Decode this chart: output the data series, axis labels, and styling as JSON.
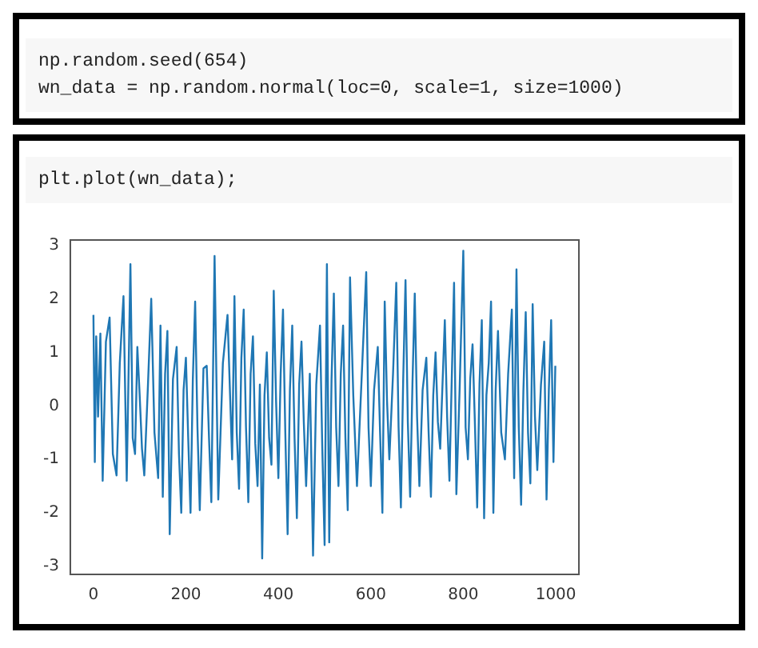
{
  "chart_data": {
    "type": "line",
    "annotations": [
      "np.random.seed(654)",
      "wn_data = np.random.normal(loc=0, scale=1, size=1000)",
      "plt.plot(wn_data);"
    ],
    "x": [
      0,
      3,
      6,
      10,
      15,
      20,
      27,
      35,
      42,
      50,
      57,
      65,
      72,
      80,
      85,
      90,
      95,
      100,
      105,
      110,
      118,
      125,
      132,
      140,
      145,
      150,
      155,
      160,
      165,
      172,
      180,
      185,
      190,
      195,
      200,
      205,
      210,
      215,
      220,
      225,
      230,
      238,
      245,
      250,
      255,
      262,
      270,
      280,
      290,
      300,
      305,
      310,
      315,
      320,
      325,
      330,
      335,
      340,
      345,
      350,
      355,
      360,
      365,
      370,
      375,
      380,
      385,
      390,
      395,
      400,
      405,
      410,
      415,
      420,
      425,
      430,
      435,
      440,
      445,
      450,
      455,
      460,
      468,
      475,
      482,
      490,
      495,
      500,
      505,
      510,
      515,
      520,
      525,
      530,
      535,
      540,
      545,
      550,
      555,
      562,
      570,
      580,
      590,
      595,
      600,
      607,
      615,
      620,
      625,
      630,
      635,
      640,
      648,
      655,
      660,
      665,
      670,
      675,
      680,
      685,
      690,
      695,
      700,
      705,
      712,
      720,
      725,
      730,
      735,
      740,
      745,
      750,
      755,
      760,
      765,
      770,
      775,
      780,
      785,
      792,
      800,
      805,
      810,
      815,
      820,
      825,
      830,
      835,
      840,
      845,
      850,
      855,
      860,
      865,
      870,
      875,
      882,
      890,
      897,
      905,
      910,
      915,
      920,
      925,
      930,
      935,
      940,
      945,
      950,
      955,
      960,
      968,
      975,
      980,
      985,
      990,
      995,
      999
    ],
    "series": [
      {
        "color": "#1f77b4",
        "values": [
          1.7,
          -1.05,
          1.3,
          -0.2,
          1.35,
          -1.4,
          1.2,
          1.65,
          -0.9,
          -1.3,
          0.8,
          2.05,
          -1.4,
          2.65,
          -0.6,
          -0.9,
          1.1,
          0.2,
          -0.8,
          -1.3,
          0.4,
          2.0,
          -0.5,
          -1.35,
          1.5,
          -1.7,
          0.6,
          1.4,
          -2.4,
          0.5,
          1.1,
          -0.9,
          -2.0,
          0.3,
          0.9,
          -0.6,
          -2.0,
          0.5,
          1.95,
          -0.4,
          -1.95,
          0.7,
          0.75,
          -0.6,
          -1.8,
          2.8,
          -1.75,
          0.8,
          1.7,
          -1.0,
          2.05,
          -0.5,
          -1.55,
          0.9,
          1.8,
          -0.4,
          -1.8,
          0.6,
          1.3,
          -0.7,
          -1.5,
          0.4,
          -2.85,
          0.2,
          1.0,
          -0.6,
          -1.1,
          2.15,
          0.1,
          -1.35,
          0.6,
          1.8,
          -0.5,
          -2.4,
          0.3,
          1.5,
          -0.6,
          -2.1,
          0.4,
          1.2,
          -0.3,
          -1.5,
          0.6,
          -2.8,
          0.4,
          1.5,
          -0.8,
          -2.6,
          2.65,
          -2.55,
          0.5,
          2.1,
          -0.4,
          -1.5,
          0.6,
          1.5,
          -0.6,
          -1.95,
          2.4,
          0.2,
          -1.5,
          0.5,
          2.5,
          -0.4,
          -1.5,
          0.3,
          1.1,
          -0.5,
          -2.0,
          1.95,
          0.1,
          -1.0,
          0.6,
          2.3,
          -0.4,
          -1.9,
          0.5,
          2.35,
          -0.3,
          -1.7,
          0.4,
          2.1,
          -0.2,
          -1.5,
          0.3,
          0.9,
          -0.5,
          -1.7,
          0.2,
          1.0,
          -0.3,
          -0.8,
          0.4,
          1.6,
          -0.2,
          -1.4,
          0.5,
          2.3,
          -1.65,
          0.3,
          2.9,
          -0.4,
          -1.0,
          0.5,
          1.15,
          -0.3,
          -1.9,
          0.4,
          1.6,
          -2.1,
          0.2,
          0.8,
          1.95,
          -2.0,
          0.3,
          1.4,
          -0.5,
          -1.0,
          0.6,
          1.8,
          -1.35,
          2.55,
          -0.4,
          -1.85,
          0.3,
          1.75,
          -0.5,
          -1.45,
          1.9,
          -0.2,
          -1.2,
          0.4,
          1.2,
          -1.75,
          0.3,
          1.6,
          -1.05,
          0.75
        ]
      }
    ],
    "xlim": [
      -50,
      1050
    ],
    "ylim": [
      -3.15,
      3.1
    ],
    "xticks": [
      0,
      200,
      400,
      600,
      800,
      1000
    ],
    "yticks": [
      -3,
      -2,
      -1,
      0,
      1,
      2,
      3
    ],
    "grid": false,
    "legend": false,
    "marker": "none",
    "line_style": "solid"
  }
}
